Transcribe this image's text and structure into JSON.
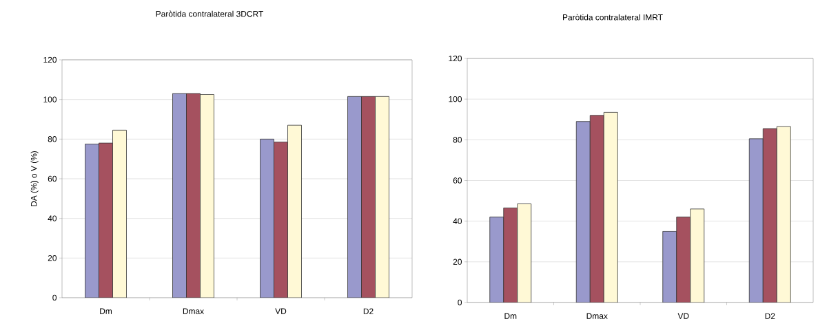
{
  "chart_data": [
    {
      "type": "bar",
      "title": "Paròtida contralateral 3DCRT",
      "ylabel": "DA (%) o V (%)",
      "categories": [
        "Dm",
        "Dmax",
        "VD",
        "D2"
      ],
      "ylim": [
        0,
        120
      ],
      "yticks": [
        0,
        20,
        40,
        60,
        80,
        100,
        120
      ],
      "grid": "y",
      "series": [
        {
          "color": "#9999cc",
          "values": [
            77.5,
            103,
            80,
            101.5
          ]
        },
        {
          "color": "#a5515f",
          "values": [
            78,
            103,
            78.5,
            101.5
          ]
        },
        {
          "color": "#fff9d6",
          "values": [
            84.5,
            102.5,
            87,
            101.5
          ]
        }
      ]
    },
    {
      "type": "bar",
      "title": "Paròtida contralateral IMRT",
      "categories": [
        "Dm",
        "Dmax",
        "VD",
        "D2"
      ],
      "ylim": [
        0,
        120
      ],
      "yticks": [
        0,
        20,
        40,
        60,
        80,
        100,
        120
      ],
      "grid": "y",
      "series": [
        {
          "color": "#9999cc",
          "values": [
            42,
            89,
            35,
            80.5
          ]
        },
        {
          "color": "#a5515f",
          "values": [
            46.5,
            92,
            42,
            85.5
          ]
        },
        {
          "color": "#fff9d6",
          "values": [
            48.5,
            93.5,
            46,
            86.5
          ]
        }
      ]
    }
  ]
}
